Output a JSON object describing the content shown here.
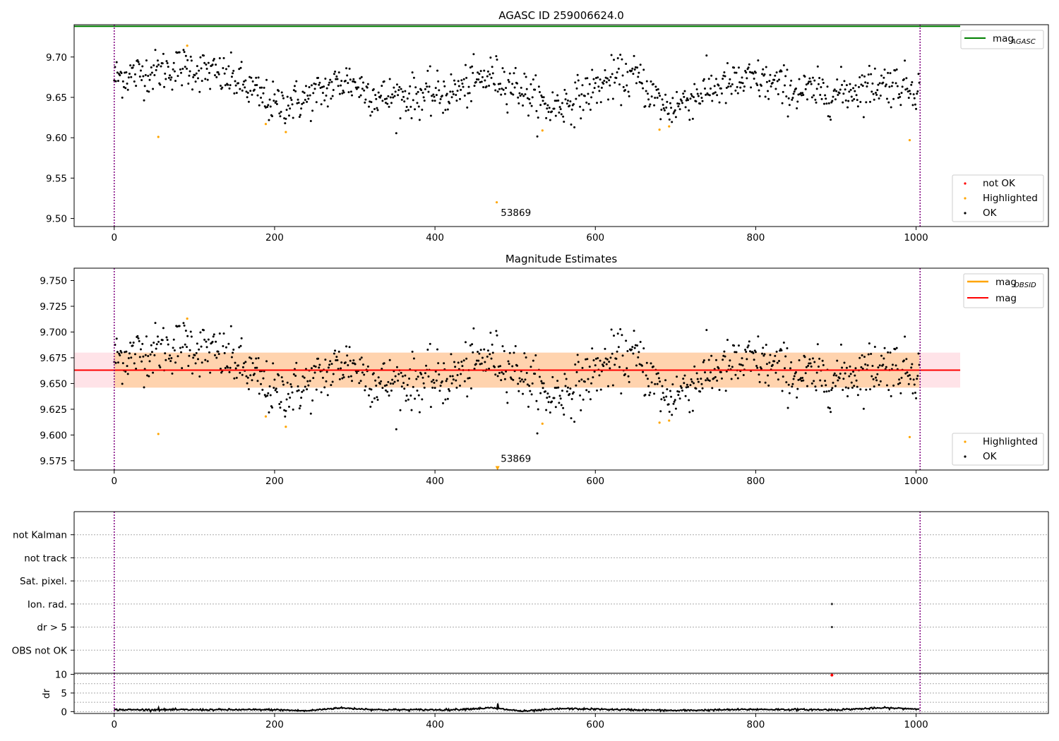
{
  "chart_data": [
    {
      "type": "scatter",
      "title": "AGASC ID 259006624.0",
      "xlim": [
        -50,
        1165
      ],
      "ylim": [
        9.49,
        9.74
      ],
      "xticks": [
        0,
        200,
        400,
        600,
        800,
        1000
      ],
      "yticks": [
        9.5,
        9.55,
        9.6,
        9.65,
        9.7
      ],
      "ytick_labels": [
        "9.50",
        "9.55",
        "9.60",
        "9.65",
        "9.70"
      ],
      "vlines": [
        0,
        1005
      ],
      "hline": {
        "value": 9.738,
        "x_range": [
          -50,
          1055
        ],
        "color": "#008000",
        "legend": "mag",
        "legend_sub": "AGASC"
      },
      "annotation": {
        "text": "53869",
        "x": 482,
        "y": 9.503
      },
      "legend_top": "top-right",
      "legend_bottom": "lower-right",
      "series": [
        {
          "name": "not OK",
          "color": "#ff0000",
          "x": [],
          "y": []
        },
        {
          "name": "Highlighted",
          "color": "#ffa500",
          "x": [
            55,
            91,
            189,
            214,
            477,
            534,
            680,
            692,
            992
          ],
          "y": [
            9.601,
            9.714,
            9.617,
            9.607,
            9.52,
            9.609,
            9.61,
            9.614,
            9.597
          ]
        },
        {
          "name": "OK",
          "color": "#000000",
          "model": {
            "n": 1000,
            "x_range": [
              0,
              1004
            ],
            "base": 9.662,
            "noise": 0.013,
            "anchors": [
              [
                0,
                9.675
              ],
              [
                90,
                9.688
              ],
              [
                150,
                9.672
              ],
              [
                200,
                9.64
              ],
              [
                240,
                9.648
              ],
              [
                290,
                9.672
              ],
              [
                330,
                9.65
              ],
              [
                380,
                9.652
              ],
              [
                420,
                9.655
              ],
              [
                470,
                9.677
              ],
              [
                500,
                9.665
              ],
              [
                540,
                9.637
              ],
              [
                570,
                9.645
              ],
              [
                620,
                9.672
              ],
              [
                650,
                9.676
              ],
              [
                670,
                9.655
              ],
              [
                690,
                9.635
              ],
              [
                740,
                9.66
              ],
              [
                800,
                9.672
              ],
              [
                850,
                9.658
              ],
              [
                900,
                9.655
              ],
              [
                960,
                9.668
              ],
              [
                1004,
                9.662
              ]
            ]
          }
        }
      ]
    },
    {
      "type": "scatter",
      "title": "Magnitude Estimates",
      "xlim": [
        -50,
        1165
      ],
      "ylim": [
        9.566,
        9.762
      ],
      "xticks": [
        0,
        200,
        400,
        600,
        800,
        1000
      ],
      "yticks": [
        9.575,
        9.6,
        9.625,
        9.65,
        9.675,
        9.7,
        9.725,
        9.75
      ],
      "ytick_labels": [
        "9.575",
        "9.600",
        "9.625",
        "9.650",
        "9.675",
        "9.700",
        "9.725",
        "9.750"
      ],
      "vlines": [
        0,
        1005
      ],
      "bands": [
        {
          "x_range": [
            -50,
            1055
          ],
          "y_range": [
            9.646,
            9.68
          ],
          "color": "#ffc0cb",
          "opacity": 0.45
        },
        {
          "x_range": [
            0,
            1004
          ],
          "y_range": [
            9.646,
            9.68
          ],
          "color": "#ffa500",
          "opacity": 0.25
        }
      ],
      "lines": [
        {
          "name": "mag",
          "legend_sub": "OBSID",
          "color": "#ffa500",
          "y": 9.663,
          "x_range": [
            0,
            1004
          ]
        },
        {
          "name": "mag",
          "color": "#ff0000",
          "y": 9.663,
          "x_range": [
            -50,
            1055
          ]
        }
      ],
      "marker": {
        "x": 478,
        "y": 9.567,
        "color": "#ffa500"
      },
      "annotation": {
        "text": "53869",
        "x": 482,
        "y": 9.574
      },
      "legend_top": "top-right",
      "legend_bottom": "lower-right",
      "series": [
        {
          "name": "Highlighted",
          "color": "#ffa500",
          "x": [
            55,
            91,
            189,
            214,
            534,
            680,
            692,
            992
          ],
          "y": [
            9.601,
            9.713,
            9.618,
            9.608,
            9.611,
            9.612,
            9.614,
            9.598
          ]
        },
        {
          "name": "OK",
          "color": "#000000",
          "model_ref": 0
        }
      ]
    },
    {
      "type": "scatter",
      "title": "",
      "xlim": [
        -50,
        1165
      ],
      "vlines": [
        0,
        1005
      ],
      "flag_categories": [
        "not Kalman",
        "not track",
        "Sat. pixel.",
        "Ion. rad.",
        "dr > 5",
        "OBS not OK"
      ],
      "flag_points": [
        {
          "category": "Ion. rad.",
          "x": [
            895
          ]
        },
        {
          "category": "dr > 5",
          "x": [
            895
          ]
        }
      ]
    },
    {
      "type": "line",
      "title": "",
      "xlim": [
        -50,
        1165
      ],
      "ylim": [
        -0.5,
        10.3
      ],
      "ylabel": "dr",
      "xticks": [
        0,
        200,
        400,
        600,
        800,
        1000
      ],
      "yticks": [
        0,
        5,
        10
      ],
      "ytick_labels": [
        "0",
        "5",
        "10"
      ],
      "vlines": [
        0,
        1005
      ],
      "outlier": {
        "x": 895,
        "y": 9.8,
        "color": "#ff0000"
      },
      "series": [
        {
          "name": "dr",
          "color": "#000000",
          "model": {
            "n": 1000,
            "x_range": [
              0,
              1004
            ],
            "base": 0.6,
            "noise": 0.12,
            "anchors": [
              [
                0,
                0.5
              ],
              [
                200,
                0.5
              ],
              [
                240,
                0.2
              ],
              [
                280,
                1.0
              ],
              [
                330,
                0.5
              ],
              [
                420,
                0.5
              ],
              [
                470,
                1.0
              ],
              [
                510,
                0.1
              ],
              [
                560,
                0.8
              ],
              [
                640,
                0.5
              ],
              [
                700,
                0.3
              ],
              [
                800,
                0.6
              ],
              [
                900,
                0.5
              ],
              [
                960,
                1.0
              ],
              [
                1004,
                0.7
              ]
            ]
          },
          "spikes": [
            [
              55,
              1.1
            ],
            [
              478,
              2.2
            ]
          ]
        }
      ]
    }
  ]
}
